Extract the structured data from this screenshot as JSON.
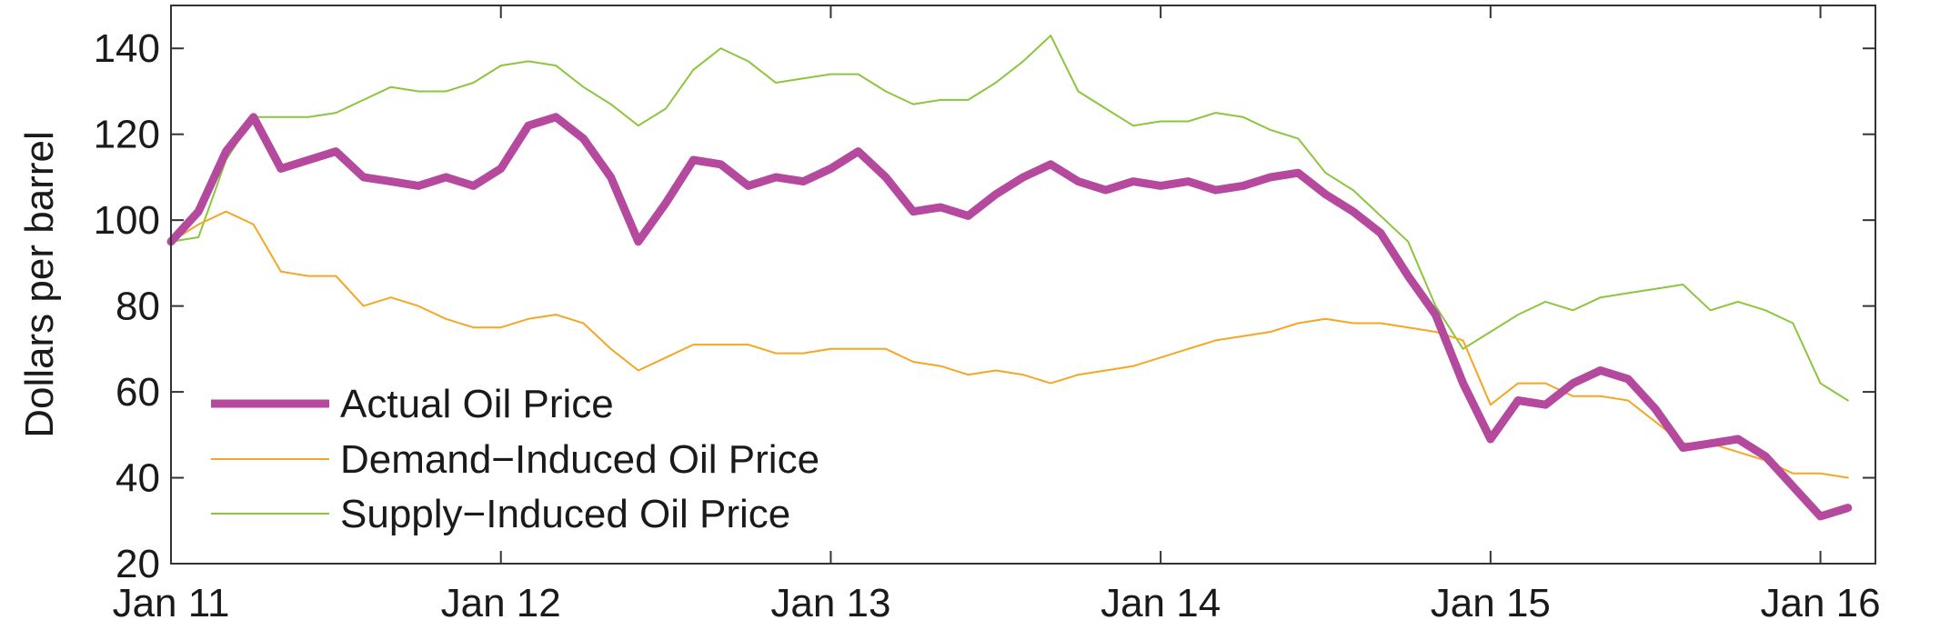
{
  "chart_data": {
    "type": "line",
    "title": "",
    "xlabel": "",
    "ylabel": "Dollars per barrel",
    "ylim": [
      20,
      150
    ],
    "yticks": [
      20,
      40,
      60,
      80,
      100,
      120,
      140
    ],
    "xlim": [
      "2011-01",
      "2016-03"
    ],
    "xticks": [
      {
        "label": "Jan 11",
        "date": "2011-01"
      },
      {
        "label": "Jan 12",
        "date": "2012-01"
      },
      {
        "label": "Jan 13",
        "date": "2013-01"
      },
      {
        "label": "Jan 14",
        "date": "2014-01"
      },
      {
        "label": "Jan 15",
        "date": "2015-01"
      },
      {
        "label": "Jan 16",
        "date": "2016-01"
      }
    ],
    "grid": false,
    "legend_position": "bottom-left",
    "x": [
      "2011-01",
      "2011-02",
      "2011-03",
      "2011-04",
      "2011-05",
      "2011-06",
      "2011-07",
      "2011-08",
      "2011-09",
      "2011-10",
      "2011-11",
      "2011-12",
      "2012-01",
      "2012-02",
      "2012-03",
      "2012-04",
      "2012-05",
      "2012-06",
      "2012-07",
      "2012-08",
      "2012-09",
      "2012-10",
      "2012-11",
      "2012-12",
      "2013-01",
      "2013-02",
      "2013-03",
      "2013-04",
      "2013-05",
      "2013-06",
      "2013-07",
      "2013-08",
      "2013-09",
      "2013-10",
      "2013-11",
      "2013-12",
      "2014-01",
      "2014-02",
      "2014-03",
      "2014-04",
      "2014-05",
      "2014-06",
      "2014-07",
      "2014-08",
      "2014-09",
      "2014-10",
      "2014-11",
      "2014-12",
      "2015-01",
      "2015-02",
      "2015-03",
      "2015-04",
      "2015-05",
      "2015-06",
      "2015-07",
      "2015-08",
      "2015-09",
      "2015-10",
      "2015-11",
      "2015-12",
      "2016-01",
      "2016-02"
    ],
    "series": [
      {
        "name": "Actual Oil Price",
        "color": "#b5499e",
        "values": [
          95,
          102,
          116,
          124,
          112,
          114,
          116,
          110,
          109,
          108,
          110,
          108,
          112,
          122,
          124,
          119,
          110,
          95,
          104,
          114,
          113,
          108,
          110,
          109,
          112,
          116,
          110,
          102,
          103,
          101,
          106,
          110,
          113,
          109,
          107,
          109,
          108,
          109,
          107,
          108,
          110,
          111,
          106,
          102,
          97,
          87,
          78,
          62,
          49,
          58,
          57,
          62,
          65,
          63,
          56,
          47,
          48,
          49,
          45,
          38,
          31,
          33
        ]
      },
      {
        "name": "Demand−Induced Oil Price",
        "color": "#f5a623",
        "values": [
          95,
          99,
          102,
          99,
          88,
          87,
          87,
          80,
          82,
          80,
          77,
          75,
          75,
          77,
          78,
          76,
          70,
          65,
          68,
          71,
          71,
          71,
          69,
          69,
          70,
          70,
          70,
          67,
          66,
          64,
          65,
          64,
          62,
          64,
          65,
          66,
          68,
          70,
          72,
          73,
          74,
          76,
          77,
          76,
          76,
          75,
          74,
          72,
          57,
          62,
          62,
          59,
          59,
          58,
          53,
          48,
          48,
          46,
          44,
          41,
          41,
          40
        ]
      },
      {
        "name": "Supply−Induced Oil Price",
        "color": "#8cc63f",
        "values": [
          95,
          96,
          114,
          124,
          124,
          124,
          125,
          128,
          131,
          130,
          130,
          132,
          136,
          137,
          136,
          131,
          127,
          122,
          126,
          135,
          140,
          137,
          132,
          133,
          134,
          134,
          130,
          127,
          128,
          128,
          132,
          137,
          143,
          130,
          126,
          122,
          123,
          123,
          125,
          124,
          121,
          119,
          111,
          107,
          101,
          95,
          80,
          70,
          74,
          78,
          81,
          79,
          82,
          83,
          84,
          85,
          79,
          81,
          79,
          76,
          62,
          58
        ]
      }
    ]
  }
}
